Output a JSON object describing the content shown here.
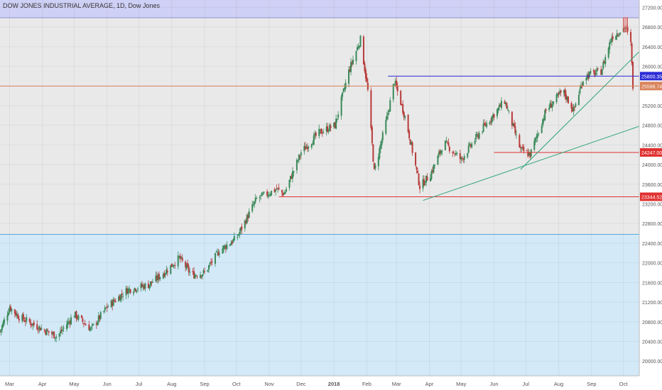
{
  "header": {
    "title": "DOW JONES INDUSTRIAL AVERAGE, 1D, Dow Jones"
  },
  "colors": {
    "up": "#3a8a5a",
    "down": "#b83a3a",
    "top_band": "#cfd0f5",
    "mid_band": "#e9e9e9",
    "low_band": "#d3e9f7",
    "blue_line": "#2b2bd6",
    "orange_line": "#d9825a",
    "red_line": "#e03030",
    "green_line": "#2fa37a"
  },
  "chart_data": {
    "type": "candlestick",
    "title": "DOW JONES INDUSTRIAL AVERAGE, 1D, Dow Jones",
    "x_range": [
      "2017-02-20",
      "2018-10-16"
    ],
    "ylim": [
      19700,
      27350
    ],
    "y_ticks": [
      20000,
      20400,
      20800,
      21200,
      21600,
      22000,
      22400,
      22800,
      23200,
      23600,
      24000,
      24400,
      24800,
      25200,
      25600,
      26000,
      26400,
      26800,
      27200
    ],
    "y_tick_labels": [
      "20000.00",
      "20400.00",
      "20800.00",
      "21200.00",
      "21600.00",
      "22000.00",
      "22400.00",
      "22800.00",
      "23200.00",
      "23600.00",
      "24000.00",
      "24400.00",
      "24800.00",
      "25200.00",
      "25600.00",
      "26000.00",
      "26400.00",
      "26800.00",
      "27200.00"
    ],
    "x_tick_labels": [
      {
        "date": "2017-03-01",
        "label": "Mar"
      },
      {
        "date": "2017-04-01",
        "label": "Apr"
      },
      {
        "date": "2017-05-01",
        "label": "May"
      },
      {
        "date": "2017-06-01",
        "label": "Jun"
      },
      {
        "date": "2017-07-01",
        "label": "Jul"
      },
      {
        "date": "2017-08-01",
        "label": "Aug"
      },
      {
        "date": "2017-09-01",
        "label": "Sep"
      },
      {
        "date": "2017-10-01",
        "label": "Oct"
      },
      {
        "date": "2017-11-01",
        "label": "Nov"
      },
      {
        "date": "2017-12-01",
        "label": "Dec"
      },
      {
        "date": "2018-01-01",
        "label": "2018"
      },
      {
        "date": "2018-02-01",
        "label": "Feb"
      },
      {
        "date": "2018-03-01",
        "label": "Mar"
      },
      {
        "date": "2018-04-01",
        "label": "Apr"
      },
      {
        "date": "2018-05-01",
        "label": "May"
      },
      {
        "date": "2018-06-01",
        "label": "Jun"
      },
      {
        "date": "2018-07-01",
        "label": "Jul"
      },
      {
        "date": "2018-08-01",
        "label": "Aug"
      },
      {
        "date": "2018-09-01",
        "label": "Sep"
      },
      {
        "date": "2018-10-01",
        "label": "Oct"
      }
    ],
    "closing_path": [
      [
        "2017-02-20",
        20600
      ],
      [
        "2017-03-01",
        21100
      ],
      [
        "2017-03-10",
        20900
      ],
      [
        "2017-04-01",
        20650
      ],
      [
        "2017-04-15",
        20500
      ],
      [
        "2017-05-01",
        20950
      ],
      [
        "2017-05-17",
        20650
      ],
      [
        "2017-06-01",
        21100
      ],
      [
        "2017-06-20",
        21450
      ],
      [
        "2017-07-10",
        21550
      ],
      [
        "2017-07-25",
        21800
      ],
      [
        "2017-08-08",
        22100
      ],
      [
        "2017-08-20",
        21750
      ],
      [
        "2017-09-01",
        21800
      ],
      [
        "2017-09-15",
        22250
      ],
      [
        "2017-10-01",
        22500
      ],
      [
        "2017-10-20",
        23300
      ],
      [
        "2017-11-08",
        23500
      ],
      [
        "2017-11-15",
        23400
      ],
      [
        "2017-12-01",
        24250
      ],
      [
        "2017-12-18",
        24650
      ],
      [
        "2018-01-02",
        24800
      ],
      [
        "2018-01-15",
        25900
      ],
      [
        "2018-01-26",
        26550
      ],
      [
        "2018-02-02",
        25500
      ],
      [
        "2018-02-08",
        23850
      ],
      [
        "2018-02-20",
        24950
      ],
      [
        "2018-02-27",
        25700
      ],
      [
        "2018-03-10",
        24900
      ],
      [
        "2018-03-23",
        23550
      ],
      [
        "2018-04-02",
        23800
      ],
      [
        "2018-04-15",
        24450
      ],
      [
        "2018-05-01",
        24100
      ],
      [
        "2018-05-20",
        24700
      ],
      [
        "2018-06-11",
        25300
      ],
      [
        "2018-06-26",
        24300
      ],
      [
        "2018-07-05",
        24200
      ],
      [
        "2018-07-20",
        25100
      ],
      [
        "2018-08-05",
        25500
      ],
      [
        "2018-08-15",
        25100
      ],
      [
        "2018-08-25",
        25800
      ],
      [
        "2018-09-10",
        25900
      ],
      [
        "2018-09-20",
        26600
      ],
      [
        "2018-10-03",
        26800
      ],
      [
        "2018-10-08",
        26450
      ],
      [
        "2018-10-10",
        25598.74
      ]
    ],
    "marked_zone": {
      "x": [
        "2018-10-01",
        "2018-10-05"
      ],
      "y": [
        26700,
        26990
      ]
    },
    "bands": [
      {
        "name": "top",
        "from": 26990,
        "to": 27350
      },
      {
        "name": "middle",
        "from": 22580,
        "to": 26990
      },
      {
        "name": "bottom",
        "from": 19700,
        "to": 22580
      }
    ],
    "horizontal_levels": [
      {
        "value": 25800.35,
        "label": "25800.35",
        "color": "#2b2bd6",
        "from": "2018-02-21"
      },
      {
        "value": 25598.74,
        "label": "25598.74",
        "color": "#d9825a",
        "from": "2017-02-20"
      },
      {
        "value": 24247.0,
        "label": "24247.00",
        "color": "#e03030",
        "from": "2018-06-01"
      },
      {
        "value": 23344.52,
        "label": "23344.52",
        "color": "#e03030",
        "from": "2017-11-10"
      }
    ],
    "trend_lines": [
      {
        "points": [
          [
            "2018-03-26",
            23270
          ],
          [
            "2018-10-16",
            24780
          ]
        ],
        "color": "#2fa37a"
      },
      {
        "points": [
          [
            "2018-06-26",
            23900
          ],
          [
            "2018-10-16",
            26300
          ]
        ],
        "color": "#2fa37a"
      }
    ]
  }
}
